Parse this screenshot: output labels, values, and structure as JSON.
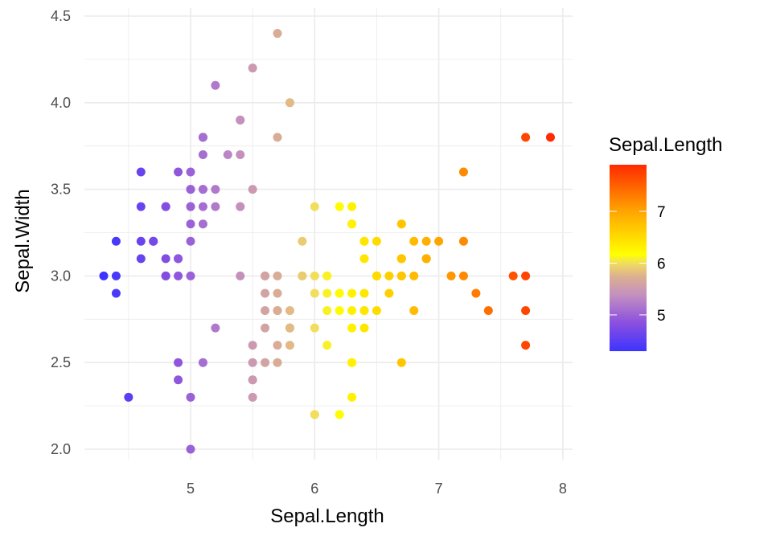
{
  "chart_data": {
    "type": "scatter",
    "xlabel": "Sepal.Length",
    "ylabel": "Sepal.Width",
    "xlim": [
      4.3,
      7.9
    ],
    "ylim": [
      2.0,
      4.5
    ],
    "xticks": [
      "5",
      "6",
      "7",
      "8"
    ],
    "yticks": [
      "2.0",
      "2.5",
      "3.0",
      "3.5",
      "4.0",
      "4.5"
    ],
    "grid": true,
    "legend": {
      "title": "Sepal.Length",
      "placement": "right",
      "ticks": [
        "5",
        "6",
        "7"
      ],
      "range": [
        4.3,
        7.9
      ],
      "colors": [
        "#3d34ff",
        "#8a4fe0",
        "#c38fc0",
        "#dcb090",
        "#f0dc60",
        "#ffff00",
        "#ffa500",
        "#ff2a00"
      ]
    },
    "points": [
      [
        5.1,
        3.5
      ],
      [
        4.9,
        3.0
      ],
      [
        4.7,
        3.2
      ],
      [
        4.6,
        3.1
      ],
      [
        5.0,
        3.6
      ],
      [
        5.4,
        3.9
      ],
      [
        4.6,
        3.4
      ],
      [
        5.0,
        3.4
      ],
      [
        4.4,
        2.9
      ],
      [
        4.9,
        3.1
      ],
      [
        5.4,
        3.7
      ],
      [
        4.8,
        3.4
      ],
      [
        4.8,
        3.0
      ],
      [
        4.3,
        3.0
      ],
      [
        5.8,
        4.0
      ],
      [
        5.7,
        4.4
      ],
      [
        5.4,
        3.9
      ],
      [
        5.1,
        3.5
      ],
      [
        5.7,
        3.8
      ],
      [
        5.1,
        3.8
      ],
      [
        5.4,
        3.4
      ],
      [
        5.1,
        3.7
      ],
      [
        4.6,
        3.6
      ],
      [
        5.1,
        3.3
      ],
      [
        4.8,
        3.4
      ],
      [
        5.0,
        3.0
      ],
      [
        5.0,
        3.4
      ],
      [
        5.2,
        3.5
      ],
      [
        5.2,
        3.4
      ],
      [
        4.7,
        3.2
      ],
      [
        4.8,
        3.1
      ],
      [
        5.4,
        3.4
      ],
      [
        5.2,
        4.1
      ],
      [
        5.5,
        4.2
      ],
      [
        4.9,
        3.1
      ],
      [
        5.0,
        3.2
      ],
      [
        5.5,
        3.5
      ],
      [
        4.9,
        3.6
      ],
      [
        4.4,
        3.0
      ],
      [
        5.1,
        3.4
      ],
      [
        5.0,
        3.5
      ],
      [
        4.5,
        2.3
      ],
      [
        4.4,
        3.2
      ],
      [
        5.0,
        3.5
      ],
      [
        5.1,
        3.8
      ],
      [
        4.8,
        3.0
      ],
      [
        5.1,
        3.8
      ],
      [
        4.6,
        3.2
      ],
      [
        5.3,
        3.7
      ],
      [
        5.0,
        3.3
      ],
      [
        7.0,
        3.2
      ],
      [
        6.4,
        3.2
      ],
      [
        6.9,
        3.1
      ],
      [
        5.5,
        2.3
      ],
      [
        6.5,
        2.8
      ],
      [
        5.7,
        2.8
      ],
      [
        6.3,
        3.3
      ],
      [
        4.9,
        2.4
      ],
      [
        6.6,
        2.9
      ],
      [
        5.2,
        2.7
      ],
      [
        5.0,
        2.0
      ],
      [
        5.9,
        3.0
      ],
      [
        6.0,
        2.2
      ],
      [
        6.1,
        2.9
      ],
      [
        5.6,
        2.9
      ],
      [
        6.7,
        3.1
      ],
      [
        5.6,
        3.0
      ],
      [
        5.8,
        2.7
      ],
      [
        6.2,
        2.2
      ],
      [
        5.6,
        2.5
      ],
      [
        5.9,
        3.2
      ],
      [
        6.1,
        2.8
      ],
      [
        6.3,
        2.5
      ],
      [
        6.1,
        2.8
      ],
      [
        6.4,
        2.9
      ],
      [
        6.6,
        3.0
      ],
      [
        6.8,
        2.8
      ],
      [
        6.7,
        3.0
      ],
      [
        6.0,
        2.9
      ],
      [
        5.7,
        2.6
      ],
      [
        5.5,
        2.4
      ],
      [
        5.5,
        2.4
      ],
      [
        5.8,
        2.7
      ],
      [
        6.0,
        2.7
      ],
      [
        5.4,
        3.0
      ],
      [
        6.0,
        3.4
      ],
      [
        6.7,
        3.1
      ],
      [
        6.3,
        2.3
      ],
      [
        5.6,
        3.0
      ],
      [
        5.5,
        2.5
      ],
      [
        5.5,
        2.6
      ],
      [
        6.1,
        3.0
      ],
      [
        5.8,
        2.6
      ],
      [
        5.0,
        2.3
      ],
      [
        5.6,
        2.7
      ],
      [
        5.7,
        3.0
      ],
      [
        5.7,
        2.9
      ],
      [
        6.2,
        2.9
      ],
      [
        5.1,
        2.5
      ],
      [
        5.7,
        2.8
      ],
      [
        6.3,
        3.3
      ],
      [
        5.8,
        2.7
      ],
      [
        7.1,
        3.0
      ],
      [
        6.3,
        2.9
      ],
      [
        6.5,
        3.0
      ],
      [
        7.6,
        3.0
      ],
      [
        4.9,
        2.5
      ],
      [
        7.3,
        2.9
      ],
      [
        6.7,
        2.5
      ],
      [
        7.2,
        3.6
      ],
      [
        6.5,
        3.2
      ],
      [
        6.4,
        2.7
      ],
      [
        6.8,
        3.0
      ],
      [
        5.7,
        2.5
      ],
      [
        5.8,
        2.8
      ],
      [
        6.4,
        3.2
      ],
      [
        6.5,
        3.0
      ],
      [
        7.7,
        3.8
      ],
      [
        7.7,
        2.6
      ],
      [
        6.0,
        2.2
      ],
      [
        6.9,
        3.2
      ],
      [
        5.6,
        2.8
      ],
      [
        7.7,
        2.8
      ],
      [
        6.3,
        2.7
      ],
      [
        6.7,
        3.3
      ],
      [
        7.2,
        3.2
      ],
      [
        6.2,
        2.8
      ],
      [
        6.1,
        3.0
      ],
      [
        6.4,
        2.8
      ],
      [
        7.2,
        3.0
      ],
      [
        7.4,
        2.8
      ],
      [
        7.9,
        3.8
      ],
      [
        6.4,
        2.8
      ],
      [
        6.3,
        2.8
      ],
      [
        6.1,
        2.6
      ],
      [
        7.7,
        3.0
      ],
      [
        6.3,
        3.4
      ],
      [
        6.4,
        3.1
      ],
      [
        6.0,
        3.0
      ],
      [
        6.9,
        3.1
      ],
      [
        6.7,
        3.1
      ],
      [
        6.9,
        3.1
      ],
      [
        5.8,
        2.7
      ],
      [
        6.8,
        3.2
      ],
      [
        6.7,
        3.3
      ],
      [
        6.7,
        3.0
      ],
      [
        6.3,
        2.5
      ],
      [
        6.5,
        3.0
      ],
      [
        6.2,
        3.4
      ],
      [
        5.9,
        3.0
      ]
    ]
  }
}
